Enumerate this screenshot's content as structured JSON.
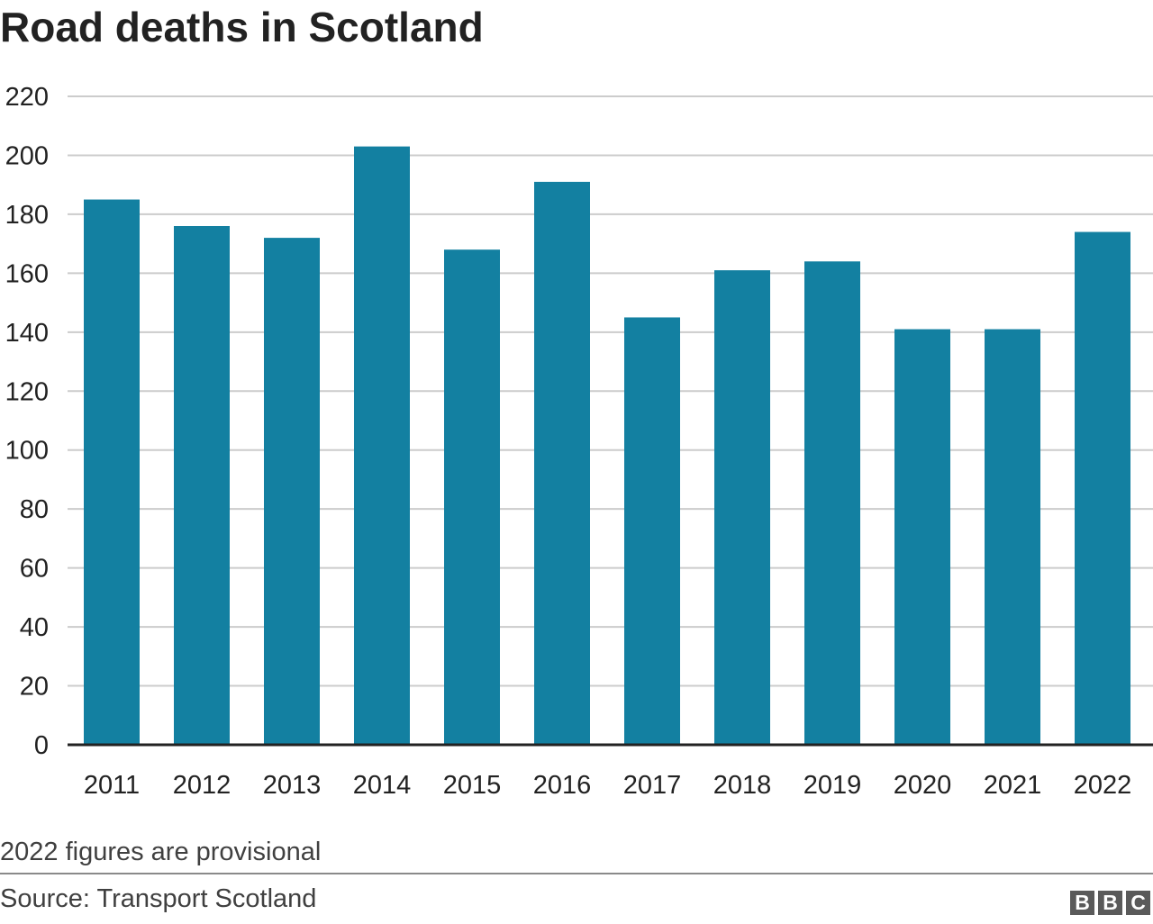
{
  "chart_data": {
    "type": "bar",
    "title": "Road deaths in Scotland",
    "categories": [
      "2011",
      "2012",
      "2013",
      "2014",
      "2015",
      "2016",
      "2017",
      "2018",
      "2019",
      "2020",
      "2021",
      "2022"
    ],
    "values": [
      185,
      176,
      172,
      203,
      168,
      191,
      145,
      161,
      164,
      141,
      141,
      174
    ],
    "ylim": [
      0,
      220
    ],
    "yticks": [
      "0",
      "20",
      "40",
      "60",
      "80",
      "100",
      "120",
      "140",
      "160",
      "180",
      "200",
      "220"
    ],
    "xlabel": "",
    "ylabel": "",
    "grid": true,
    "bar_color": "#1380A1"
  },
  "footer": {
    "note": "2022 figures are provisional",
    "source": "Source: Transport Scotland",
    "logo_letters": [
      "B",
      "B",
      "C"
    ]
  }
}
